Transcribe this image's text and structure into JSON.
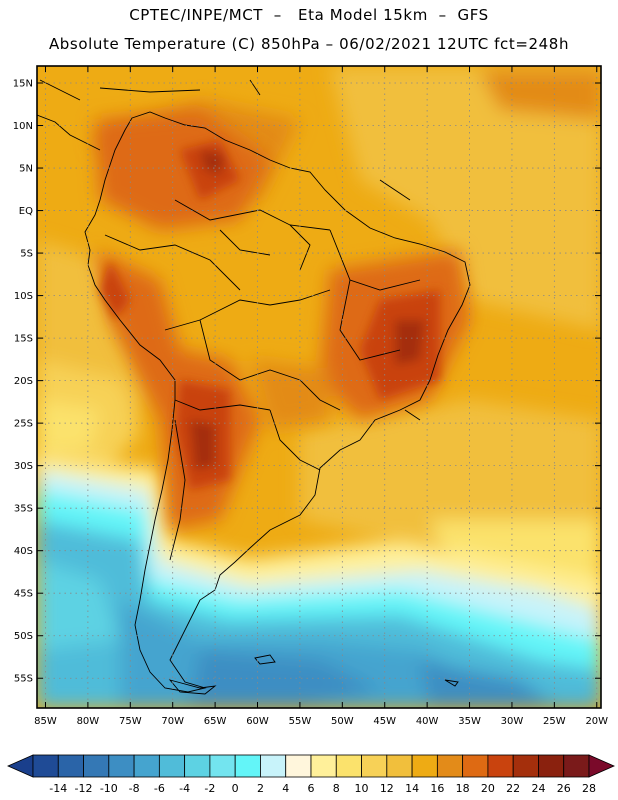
{
  "header": {
    "line1": "CPTEC/INPE/MCT  –   Eta Model 15km  –  GFS",
    "line2": "Absolute Temperature (C) 850hPa – 06/02/2021 12UTC fct=248h"
  },
  "map": {
    "lon_range": [
      -86,
      -19.5
    ],
    "lat_range": [
      -58.5,
      17
    ],
    "lat_ticks": [
      {
        "value": 15,
        "label": "15N"
      },
      {
        "value": 10,
        "label": "10N"
      },
      {
        "value": 5,
        "label": "5N"
      },
      {
        "value": 0,
        "label": "EQ"
      },
      {
        "value": -5,
        "label": "5S"
      },
      {
        "value": -10,
        "label": "10S"
      },
      {
        "value": -15,
        "label": "15S"
      },
      {
        "value": -20,
        "label": "20S"
      },
      {
        "value": -25,
        "label": "25S"
      },
      {
        "value": -30,
        "label": "30S"
      },
      {
        "value": -35,
        "label": "35S"
      },
      {
        "value": -40,
        "label": "40S"
      },
      {
        "value": -45,
        "label": "45S"
      },
      {
        "value": -50,
        "label": "50S"
      },
      {
        "value": -55,
        "label": "55S"
      }
    ],
    "lon_ticks": [
      {
        "value": -85,
        "label": "85W"
      },
      {
        "value": -80,
        "label": "80W"
      },
      {
        "value": -75,
        "label": "75W"
      },
      {
        "value": -70,
        "label": "70W"
      },
      {
        "value": -65,
        "label": "65W"
      },
      {
        "value": -60,
        "label": "60W"
      },
      {
        "value": -55,
        "label": "55W"
      },
      {
        "value": -50,
        "label": "50W"
      },
      {
        "value": -45,
        "label": "45W"
      },
      {
        "value": -40,
        "label": "40W"
      },
      {
        "value": -35,
        "label": "35W"
      },
      {
        "value": -30,
        "label": "30W"
      },
      {
        "value": -25,
        "label": "25W"
      },
      {
        "value": -20,
        "label": "20W"
      }
    ],
    "gridlines": "dotted"
  },
  "colorbar": {
    "levels": [
      "-14",
      "-12",
      "-10",
      "-8",
      "-6",
      "-4",
      "-2",
      "0",
      "2",
      "4",
      "6",
      "8",
      "10",
      "12",
      "14",
      "16",
      "18",
      "20",
      "22",
      "24",
      "26",
      "28"
    ],
    "colors": [
      "#1f4b96",
      "#2a64a8",
      "#3478b5",
      "#3d8ec3",
      "#45a4cf",
      "#50bcd9",
      "#5dd2e3",
      "#73e4ef",
      "#63f5f8",
      "#c8f3fa",
      "#fff6dc",
      "#fff09a",
      "#fbe26c",
      "#f7d157",
      "#f1bf3c",
      "#eeab14",
      "#e38b19",
      "#de6a13",
      "#c9430e",
      "#a42f0c",
      "#8a210e",
      "#7a1a1a"
    ],
    "under_color": "#1a3f8c",
    "over_color": "#7a0a2a"
  }
}
